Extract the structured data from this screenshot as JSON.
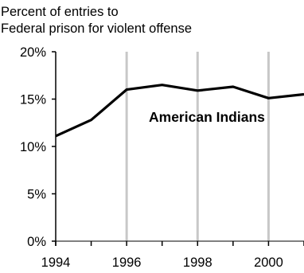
{
  "chart_data": {
    "type": "line",
    "ylabel_lines": [
      "Percent of entries to",
      "Federal prison for violent offense"
    ],
    "xlabel": "",
    "x": [
      1994,
      1995,
      1996,
      1997,
      1998,
      1999,
      2000,
      2001
    ],
    "x_ticks": [
      "1994",
      "1996",
      "1998",
      "2000"
    ],
    "y_ticks": [
      "0%",
      "5%",
      "10%",
      "15%",
      "20%"
    ],
    "ylim": [
      0,
      20
    ],
    "xlim": [
      1994,
      2001
    ],
    "grid": "vertical",
    "series": [
      {
        "name": "American Indians",
        "color": "#000000",
        "values": [
          11.1,
          12.8,
          16.0,
          16.5,
          15.9,
          16.3,
          15.1,
          15.5
        ]
      }
    ],
    "annotations": [
      "American Indians"
    ]
  }
}
